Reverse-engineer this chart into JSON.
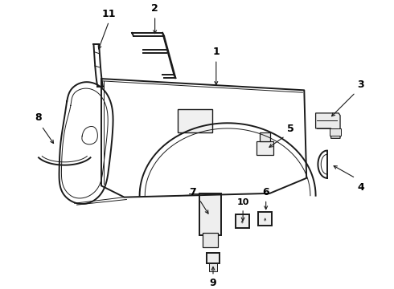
{
  "bg_color": "#ffffff",
  "line_color": "#1a1a1a",
  "text_color": "#000000",
  "fig_width": 4.9,
  "fig_height": 3.6,
  "dpi": 100,
  "lw_main": 1.4,
  "lw_thin": 0.7,
  "lw_arrow": 0.8
}
